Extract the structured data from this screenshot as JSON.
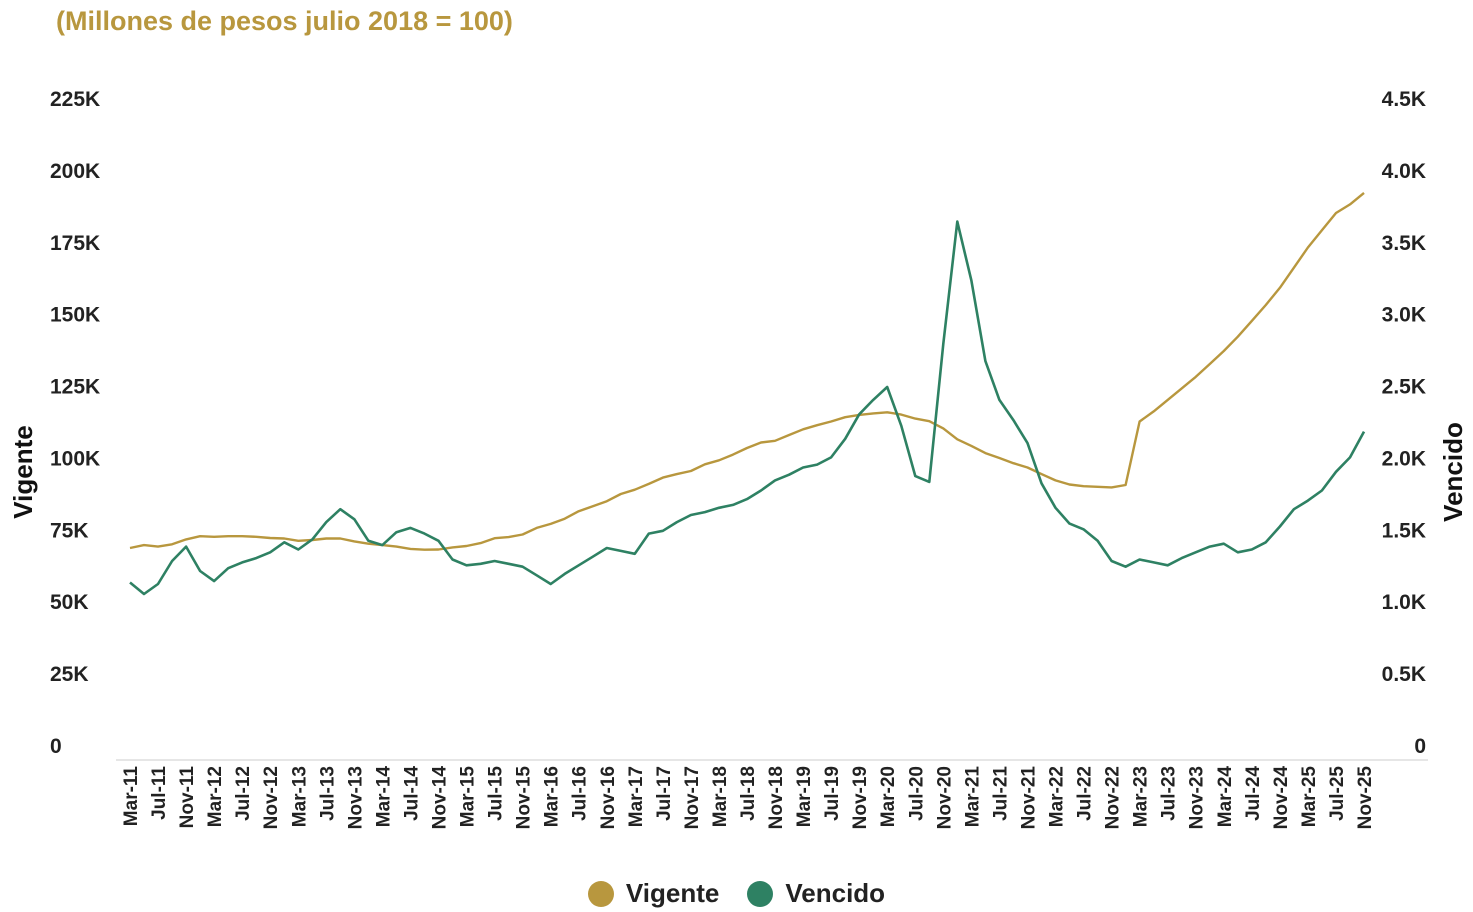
{
  "chart_data": {
    "type": "line",
    "subtitle": "(Millones de pesos julio 2018 = 100)",
    "y_left": {
      "label": "Vigente",
      "range": [
        0,
        225000
      ],
      "ticks": [
        0,
        25000,
        50000,
        75000,
        100000,
        125000,
        150000,
        175000,
        200000,
        225000
      ],
      "tick_labels": [
        "0",
        "25K",
        "50K",
        "75K",
        "100K",
        "125K",
        "150K",
        "175K",
        "200K",
        "225K"
      ]
    },
    "y_right": {
      "label": "Vencido",
      "range": [
        0,
        4500
      ],
      "ticks": [
        0,
        500,
        1000,
        1500,
        2000,
        2500,
        3000,
        3500,
        4000,
        4500
      ],
      "tick_labels": [
        "0",
        "0.5K",
        "1.0K",
        "1.5K",
        "2.0K",
        "2.5K",
        "3.0K",
        "3.5K",
        "4.0K",
        "4.5K"
      ]
    },
    "x_tick_labels": [
      "Mar-11",
      "Jul-11",
      "Nov-11",
      "Mar-12",
      "Jul-12",
      "Nov-12",
      "Mar-13",
      "Jul-13",
      "Nov-13",
      "Mar-14",
      "Jul-14",
      "Nov-14",
      "Mar-15",
      "Jul-15",
      "Nov-15",
      "Mar-16",
      "Jul-16",
      "Nov-16",
      "Mar-17",
      "Jul-17",
      "Nov-17",
      "Mar-18",
      "Jul-18",
      "Nov-18",
      "Mar-19",
      "Jul-19",
      "Nov-19",
      "Mar-20",
      "Jul-20",
      "Nov-20",
      "Mar-21",
      "Jul-21",
      "Nov-21",
      "Mar-22",
      "Jul-22",
      "Nov-22",
      "Mar-23",
      "Jul-23",
      "Nov-23",
      "Mar-24",
      "Jul-24",
      "Nov-24",
      "Mar-25",
      "Jul-25",
      "Nov-25"
    ],
    "x": [
      "Mar-11",
      "May-11",
      "Jul-11",
      "Sep-11",
      "Nov-11",
      "Jan-12",
      "Mar-12",
      "May-12",
      "Jul-12",
      "Sep-12",
      "Nov-12",
      "Jan-13",
      "Mar-13",
      "May-13",
      "Jul-13",
      "Sep-13",
      "Nov-13",
      "Jan-14",
      "Mar-14",
      "May-14",
      "Jul-14",
      "Sep-14",
      "Nov-14",
      "Jan-15",
      "Mar-15",
      "May-15",
      "Jul-15",
      "Sep-15",
      "Nov-15",
      "Jan-16",
      "Mar-16",
      "May-16",
      "Jul-16",
      "Sep-16",
      "Nov-16",
      "Jan-17",
      "Mar-17",
      "May-17",
      "Jul-17",
      "Sep-17",
      "Nov-17",
      "Jan-18",
      "Mar-18",
      "May-18",
      "Jul-18",
      "Sep-18",
      "Nov-18",
      "Jan-19",
      "Mar-19",
      "May-19",
      "Jul-19",
      "Sep-19",
      "Nov-19",
      "Jan-20",
      "Mar-20",
      "May-20",
      "Jul-20",
      "Sep-20",
      "Nov-20",
      "Jan-21",
      "Mar-21",
      "May-21",
      "Jul-21",
      "Sep-21",
      "Nov-21",
      "Jan-22",
      "Mar-22",
      "May-22",
      "Jul-22",
      "Sep-22",
      "Nov-22",
      "Jan-23",
      "Mar-23",
      "May-23",
      "Jul-23",
      "Sep-23",
      "Nov-23",
      "Jan-24",
      "Mar-24",
      "May-24",
      "Jul-24",
      "Sep-24",
      "Nov-24",
      "Jan-25",
      "Mar-25",
      "May-25",
      "Jul-25",
      "Sep-25",
      "Nov-25"
    ],
    "series": [
      {
        "name": "Vigente",
        "axis": "left",
        "color": "#b8973e",
        "values": [
          68500,
          69500,
          69000,
          69800,
          71500,
          72600,
          72400,
          72600,
          72600,
          72400,
          72000,
          71800,
          71000,
          71300,
          71800,
          71800,
          70800,
          70000,
          69500,
          69000,
          68200,
          67900,
          68000,
          68700,
          69200,
          70200,
          71900,
          72300,
          73200,
          75500,
          76900,
          78700,
          81300,
          83000,
          84800,
          87300,
          88800,
          90800,
          93000,
          94200,
          95300,
          97600,
          99000,
          101000,
          103300,
          105200,
          105800,
          107800,
          109800,
          111200,
          112500,
          114000,
          114800,
          115300,
          115700,
          114900,
          113500,
          112600,
          110100,
          106300,
          104000,
          101500,
          99800,
          98000,
          96500,
          94200,
          92000,
          90600,
          90000,
          89800,
          89600,
          90400,
          112500,
          116000,
          120000,
          124000,
          128000,
          132500,
          137000,
          142000,
          147500,
          153000,
          159000,
          166000,
          173000,
          179000,
          185000,
          188000,
          192000
        ]
      },
      {
        "name": "Vencido",
        "axis": "right",
        "color": "#2e8163",
        "values": [
          1130,
          1050,
          1120,
          1280,
          1380,
          1210,
          1140,
          1230,
          1270,
          1300,
          1340,
          1410,
          1360,
          1430,
          1550,
          1640,
          1570,
          1420,
          1390,
          1480,
          1510,
          1470,
          1420,
          1290,
          1250,
          1260,
          1280,
          1260,
          1240,
          1180,
          1120,
          1190,
          1250,
          1310,
          1370,
          1350,
          1330,
          1470,
          1490,
          1550,
          1600,
          1620,
          1650,
          1670,
          1710,
          1770,
          1840,
          1880,
          1930,
          1950,
          2000,
          2130,
          2300,
          2400,
          2490,
          2220,
          1870,
          1830,
          2790,
          3640,
          3230,
          2670,
          2400,
          2260,
          2100,
          1820,
          1650,
          1540,
          1500,
          1420,
          1280,
          1240,
          1290,
          1270,
          1250,
          1300,
          1340,
          1380,
          1400,
          1340,
          1360,
          1410,
          1520,
          1640,
          1700,
          1770,
          1900,
          2000,
          2180
        ]
      }
    ],
    "legend": {
      "placement": "bottom"
    },
    "grid": false
  }
}
